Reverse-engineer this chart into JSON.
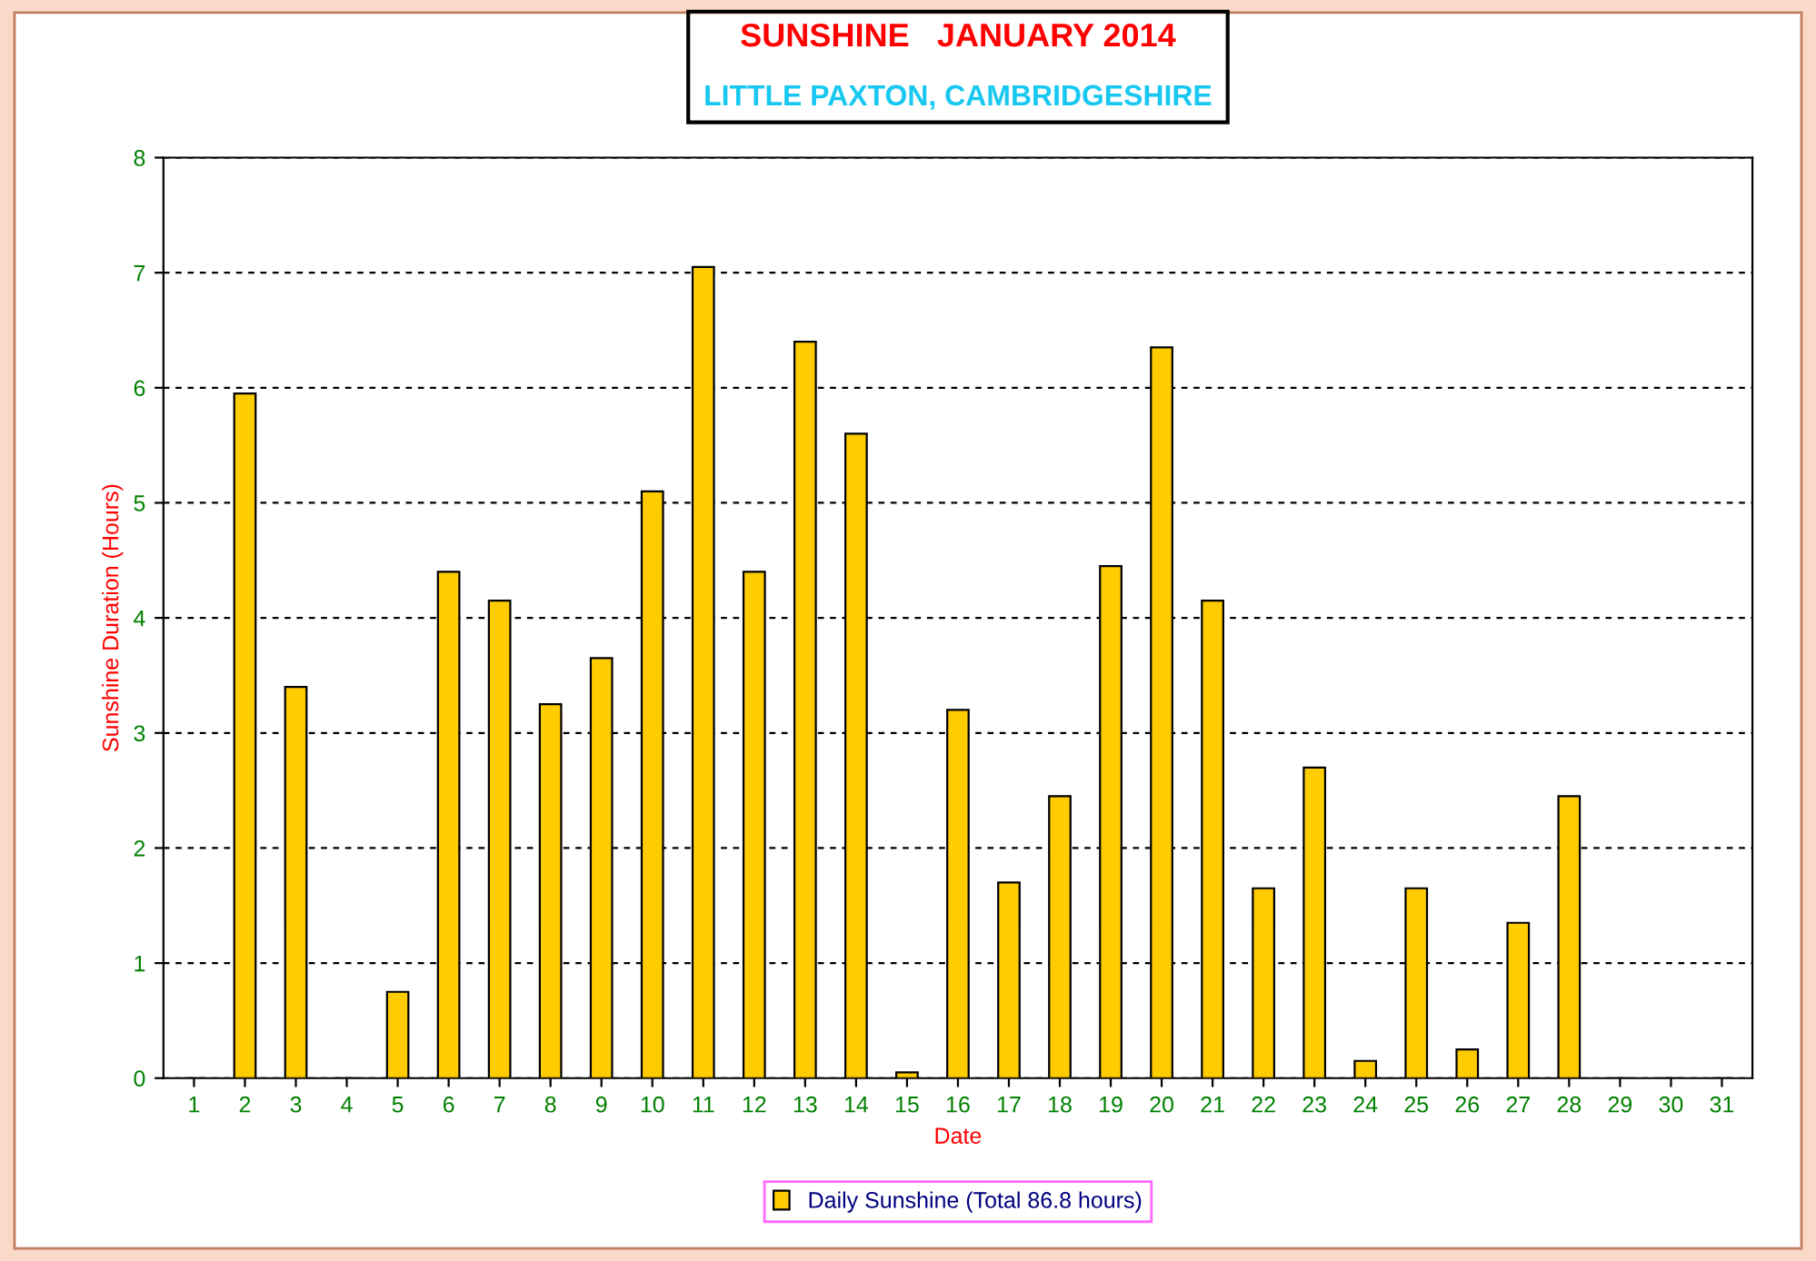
{
  "chart_data": {
    "type": "bar",
    "title": "SUNSHINE   JANUARY 2014",
    "subtitle": "LITTLE PAXTON, CAMBRIDGESHIRE",
    "xlabel": "Date",
    "ylabel": "Sunshine Duration (Hours)",
    "categories": [
      "1",
      "2",
      "3",
      "4",
      "5",
      "6",
      "7",
      "8",
      "9",
      "10",
      "11",
      "12",
      "13",
      "14",
      "15",
      "16",
      "17",
      "18",
      "19",
      "20",
      "21",
      "22",
      "23",
      "24",
      "25",
      "26",
      "27",
      "28",
      "29",
      "30",
      "31"
    ],
    "series": [
      {
        "name": "Daily Sunshine (Total 86.8 hours)",
        "color": "#ffcc00",
        "values": [
          0,
          5.95,
          3.4,
          0,
          0.75,
          4.4,
          4.15,
          3.25,
          3.65,
          5.1,
          7.05,
          4.4,
          6.4,
          5.6,
          0.05,
          3.2,
          1.7,
          2.45,
          4.45,
          6.35,
          4.15,
          1.65,
          2.7,
          0.15,
          1.65,
          0.25,
          1.35,
          2.45,
          0,
          0,
          0
        ]
      }
    ],
    "ylim": [
      0,
      8
    ],
    "yticks": [
      0,
      1,
      2,
      3,
      4,
      5,
      6,
      7,
      8
    ],
    "grid": "y",
    "legend": "bottom"
  }
}
